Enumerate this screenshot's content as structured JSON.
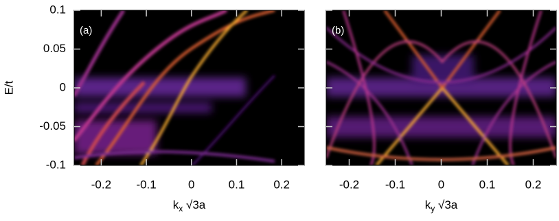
{
  "chart_data": [
    {
      "type": "heatmap",
      "panel_label": "(a)",
      "xlabel": {
        "base": "k",
        "sub": "x",
        "rest": " √3a"
      },
      "ylabel": "E/t",
      "xlim": [
        -0.26,
        0.25
      ],
      "ylim": [
        -0.1,
        0.1
      ],
      "xticks": [
        -0.2,
        -0.1,
        0,
        0.1,
        0.2
      ],
      "yticks": [
        -0.1,
        -0.05,
        0,
        0.05,
        0.1
      ],
      "ytick_labels": true
    },
    {
      "type": "heatmap",
      "panel_label": "(b)",
      "xlabel": {
        "base": "k",
        "sub": "y",
        "rest": " √3a"
      },
      "xlim": [
        -0.25,
        0.25
      ],
      "ylim": [
        -0.1,
        0.1
      ],
      "xticks": [
        -0.2,
        -0.1,
        0,
        0.1,
        0.2
      ],
      "yticks": [
        -0.1,
        -0.05,
        0,
        0.05,
        0.1
      ],
      "ytick_labels": false
    }
  ]
}
